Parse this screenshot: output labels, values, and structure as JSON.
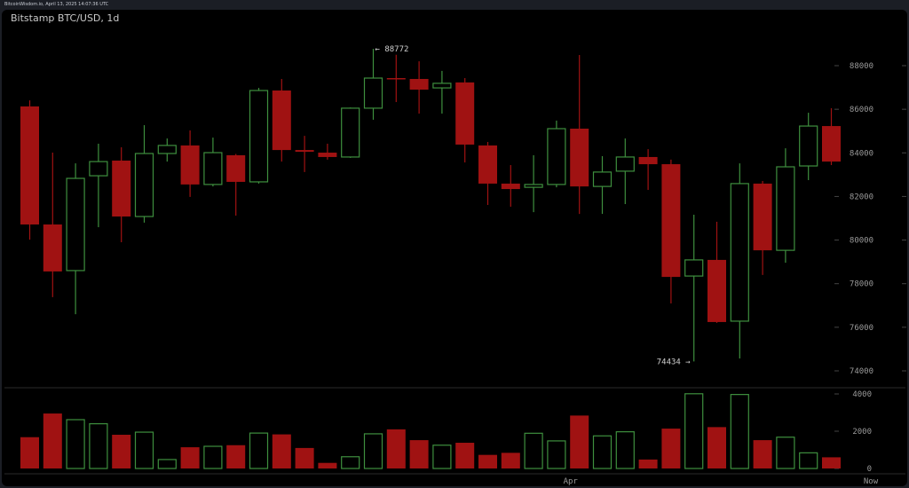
{
  "header": {
    "source_line": "BitcoinWisdom.io, April 13, 2025 14:07:36 UTC"
  },
  "chart_data": {
    "type": "candlestick",
    "title": "Bitstamp BTC/USD, 1d",
    "colors": {
      "up": "#3e8f3e",
      "down": "#a01212",
      "background": "#000000"
    },
    "price_axis": {
      "ylim": [
        73500,
        89500
      ],
      "ticks": [
        74000,
        76000,
        78000,
        80000,
        82000,
        84000,
        86000,
        88000
      ]
    },
    "volume_axis": {
      "ylim": [
        0,
        4200
      ],
      "ticks": [
        0,
        2000,
        4000
      ]
    },
    "x_labels": [
      {
        "index": 24,
        "label": "Apr"
      },
      {
        "index": 38,
        "label": "Now"
      }
    ],
    "annotations": [
      {
        "index": 15,
        "value": 88772,
        "label": "88772",
        "side": "high"
      },
      {
        "index": 29,
        "value": 74434,
        "label": "74434",
        "side": "low"
      }
    ],
    "candles": [
      {
        "o": 86130,
        "h": 86410,
        "l": 80020,
        "c": 80715,
        "v": 1680
      },
      {
        "o": 80715,
        "h": 84010,
        "l": 77380,
        "c": 78560,
        "v": 2950
      },
      {
        "o": 78600,
        "h": 83520,
        "l": 76600,
        "c": 82830,
        "v": 2620
      },
      {
        "o": 82950,
        "h": 84420,
        "l": 80590,
        "c": 83600,
        "v": 2400
      },
      {
        "o": 83645,
        "h": 84255,
        "l": 79900,
        "c": 81080,
        "v": 1810
      },
      {
        "o": 81080,
        "h": 85270,
        "l": 80800,
        "c": 83970,
        "v": 1950
      },
      {
        "o": 83970,
        "h": 84660,
        "l": 83600,
        "c": 84340,
        "v": 480
      },
      {
        "o": 84340,
        "h": 85030,
        "l": 81980,
        "c": 82550,
        "v": 1140
      },
      {
        "o": 82550,
        "h": 84700,
        "l": 82460,
        "c": 84010,
        "v": 1190
      },
      {
        "o": 83890,
        "h": 83950,
        "l": 81120,
        "c": 82670,
        "v": 1250
      },
      {
        "o": 82670,
        "h": 86980,
        "l": 82590,
        "c": 86860,
        "v": 1900
      },
      {
        "o": 86860,
        "h": 87390,
        "l": 83600,
        "c": 84130,
        "v": 1830
      },
      {
        "o": 84130,
        "h": 84780,
        "l": 83120,
        "c": 84050,
        "v": 1100
      },
      {
        "o": 84010,
        "h": 84420,
        "l": 83690,
        "c": 83810,
        "v": 300
      },
      {
        "o": 83810,
        "h": 86080,
        "l": 83770,
        "c": 86050,
        "v": 630
      },
      {
        "o": 86050,
        "h": 88772,
        "l": 85520,
        "c": 87430,
        "v": 1860
      },
      {
        "o": 87430,
        "h": 88500,
        "l": 86330,
        "c": 87390,
        "v": 2100
      },
      {
        "o": 87390,
        "h": 88200,
        "l": 85800,
        "c": 86900,
        "v": 1520
      },
      {
        "o": 86980,
        "h": 87760,
        "l": 85800,
        "c": 87190,
        "v": 1250
      },
      {
        "o": 87230,
        "h": 87430,
        "l": 83560,
        "c": 84380,
        "v": 1380
      },
      {
        "o": 84340,
        "h": 84500,
        "l": 81610,
        "c": 82590,
        "v": 730
      },
      {
        "o": 82590,
        "h": 83440,
        "l": 81530,
        "c": 82340,
        "v": 840
      },
      {
        "o": 82420,
        "h": 83890,
        "l": 81280,
        "c": 82550,
        "v": 1890
      },
      {
        "o": 82550,
        "h": 85480,
        "l": 82420,
        "c": 85110,
        "v": 1480
      },
      {
        "o": 85110,
        "h": 88490,
        "l": 81200,
        "c": 82460,
        "v": 2840
      },
      {
        "o": 82460,
        "h": 83850,
        "l": 81200,
        "c": 83120,
        "v": 1750
      },
      {
        "o": 83160,
        "h": 84660,
        "l": 81650,
        "c": 83810,
        "v": 1970
      },
      {
        "o": 83810,
        "h": 84170,
        "l": 82300,
        "c": 83480,
        "v": 480
      },
      {
        "o": 83480,
        "h": 83690,
        "l": 77090,
        "c": 78310,
        "v": 2140
      },
      {
        "o": 78350,
        "h": 81160,
        "l": 74434,
        "c": 79090,
        "v": 4010
      },
      {
        "o": 79090,
        "h": 80840,
        "l": 76200,
        "c": 76240,
        "v": 2220
      },
      {
        "o": 76280,
        "h": 83520,
        "l": 74570,
        "c": 82590,
        "v": 3970
      },
      {
        "o": 82590,
        "h": 82710,
        "l": 78400,
        "c": 79530,
        "v": 1520
      },
      {
        "o": 79530,
        "h": 84210,
        "l": 78960,
        "c": 83360,
        "v": 1680
      },
      {
        "o": 83400,
        "h": 85840,
        "l": 82750,
        "c": 85230,
        "v": 840
      },
      {
        "o": 85230,
        "h": 86050,
        "l": 83440,
        "c": 83600,
        "v": 600
      }
    ]
  }
}
